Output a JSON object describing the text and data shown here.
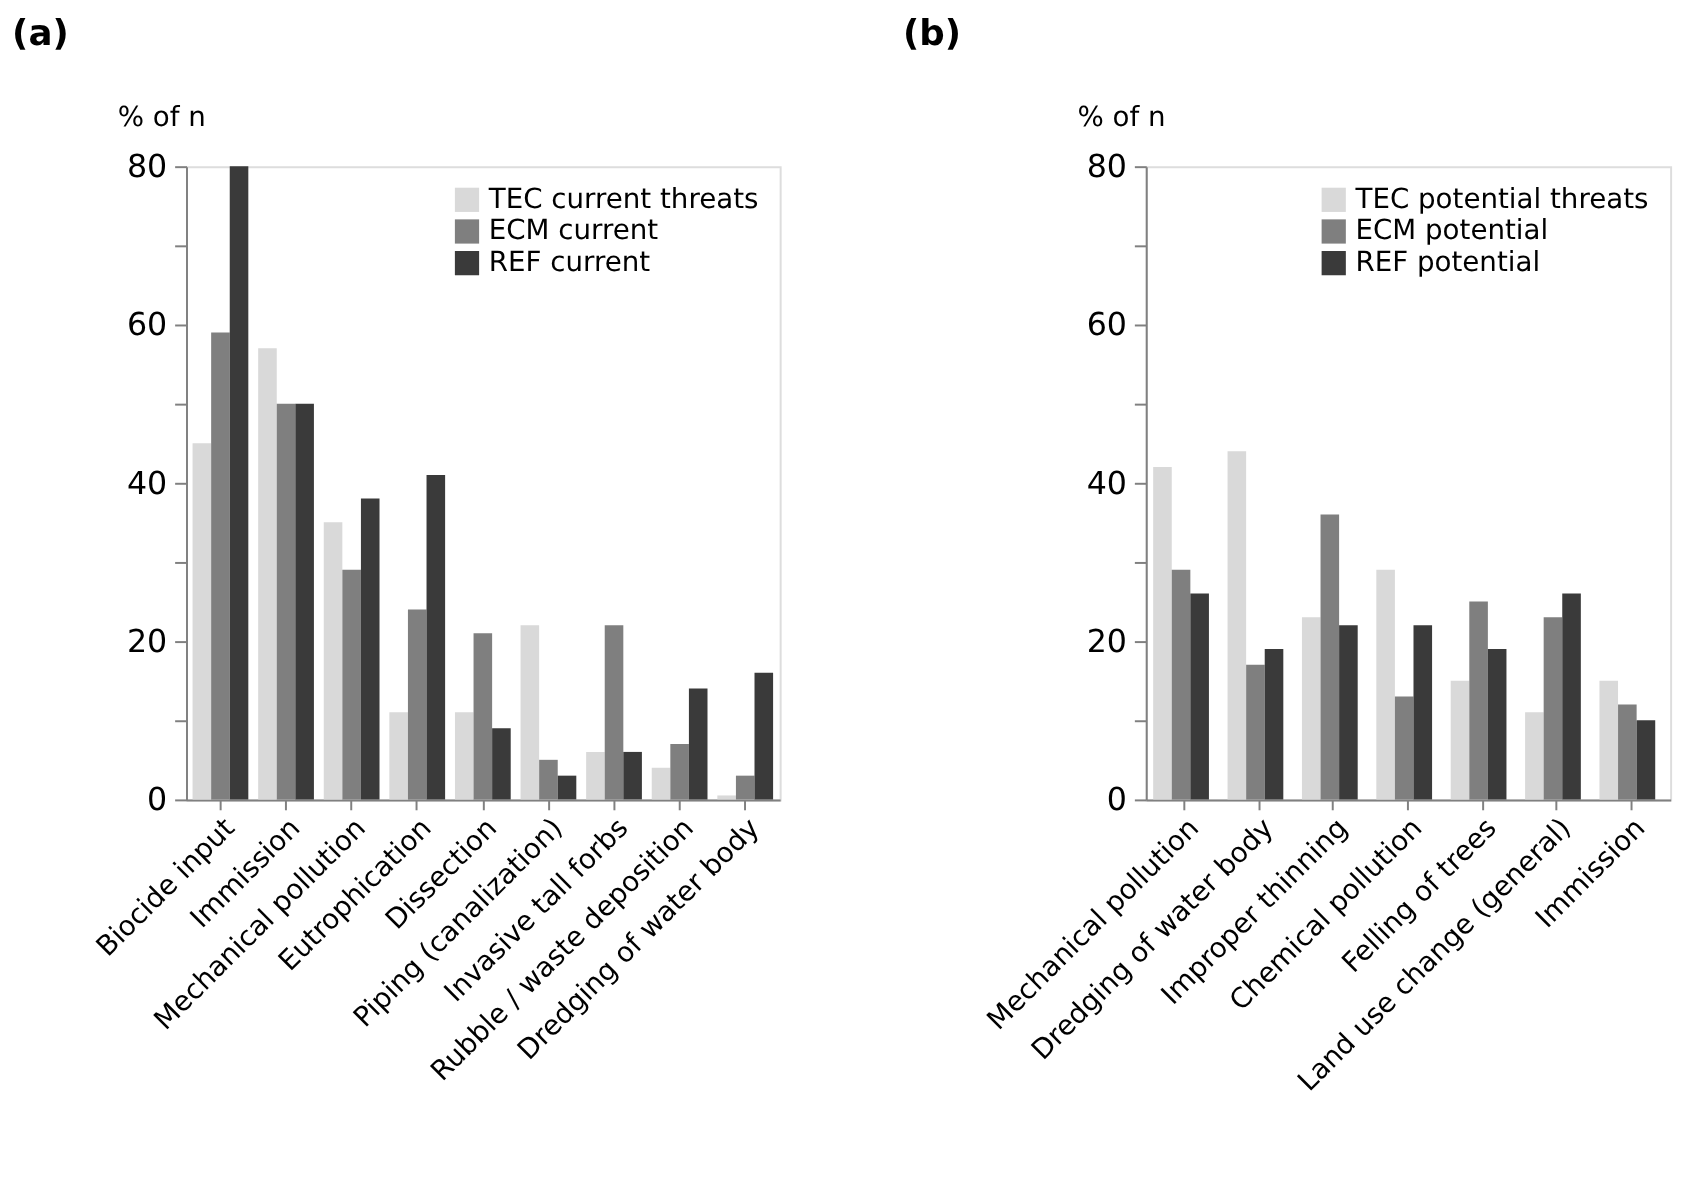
{
  "chart_data": [
    {
      "type": "bar",
      "title": "(a)",
      "ylabel": "% of n",
      "categories": [
        "Biocide input",
        "Immission",
        "Mechanical pollution",
        "Eutrophication",
        "Dissection",
        "Piping (canalization)",
        "Invasive tall forbs",
        "Rubble / waste deposition",
        "Dredging of water body"
      ],
      "series": [
        {
          "name": "TEC current threats",
          "color": "#d9d9d9",
          "values": [
            45,
            57,
            35,
            11,
            11,
            22,
            6,
            4,
            0.5
          ]
        },
        {
          "name": "ECM current",
          "color": "#7f7f7f",
          "values": [
            59,
            50,
            29,
            24,
            21,
            5,
            22,
            7,
            3
          ]
        },
        {
          "name": "REF current",
          "color": "#3a3a3a",
          "values": [
            80,
            50,
            38,
            41,
            9,
            3,
            6,
            14,
            16
          ]
        }
      ],
      "ylim": [
        0,
        80
      ],
      "yticks": [
        0,
        {
          "value": 10,
          "label": null
        },
        20,
        {
          "value": 30,
          "label": null
        },
        40,
        {
          "value": 50,
          "label": null
        },
        60,
        {
          "value": 70,
          "label": null
        },
        80
      ],
      "grid": false,
      "legend": "top right"
    },
    {
      "type": "bar",
      "title": "(b)",
      "ylabel": "% of n",
      "categories": [
        "Mechanical pollution",
        "Dredging of water body",
        "Improper thinning",
        "Chemical pollution",
        "Felling of trees",
        "Land use change (general)",
        "Immission"
      ],
      "series": [
        {
          "name": "TEC potential threats",
          "color": "#d9d9d9",
          "values": [
            42,
            44,
            23,
            29,
            15,
            11,
            15
          ]
        },
        {
          "name": "ECM potential",
          "color": "#7f7f7f",
          "values": [
            29,
            17,
            36,
            13,
            25,
            23,
            12
          ]
        },
        {
          "name": "REF potential",
          "color": "#3a3a3a",
          "values": [
            26,
            19,
            22,
            22,
            19,
            26,
            10
          ]
        }
      ],
      "ylim": [
        0,
        80
      ],
      "yticks": [
        0,
        {
          "value": 10,
          "label": null
        },
        20,
        {
          "value": 30,
          "label": null
        },
        40,
        {
          "value": 50,
          "label": null
        },
        60,
        {
          "value": 70,
          "label": null
        },
        80
      ],
      "grid": false,
      "legend": "top right"
    }
  ]
}
